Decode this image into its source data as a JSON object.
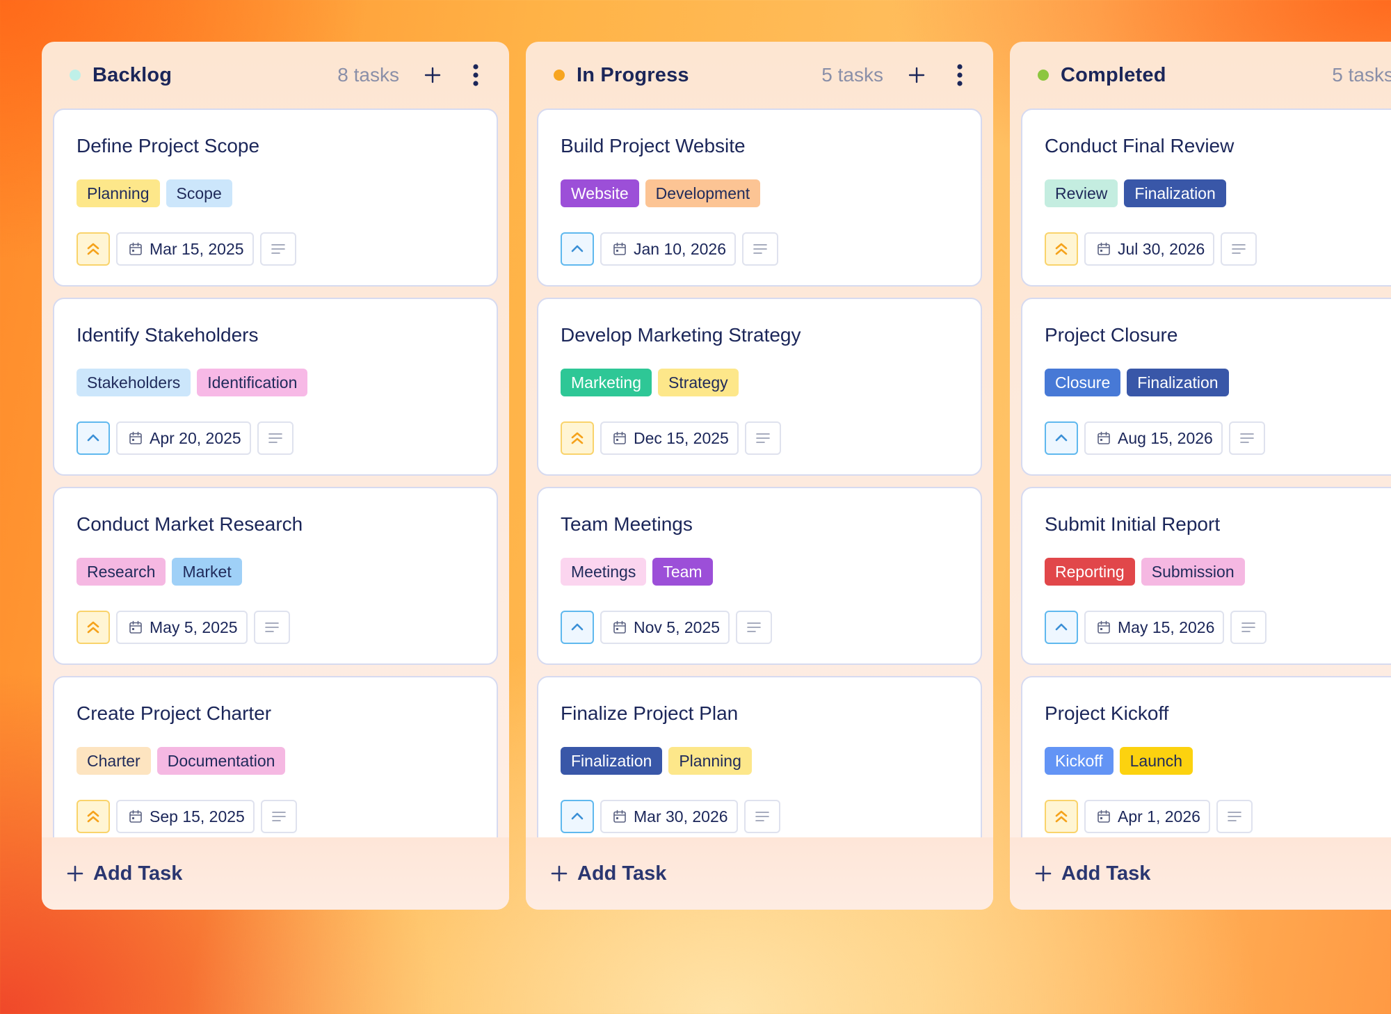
{
  "columns": [
    {
      "title": "Backlog",
      "count_label": "8 tasks",
      "dot_color": "#bff0e8",
      "show_actions": true,
      "add_task_label": "Add Task",
      "cards": [
        {
          "title": "Define Project Scope",
          "tags": [
            {
              "label": "Planning",
              "bg": "#fde78a",
              "fg": "#1f2a5a"
            },
            {
              "label": "Scope",
              "bg": "#cce6fb",
              "fg": "#1f2a5a"
            }
          ],
          "priority": "high",
          "date": "Mar 15, 2025"
        },
        {
          "title": "Identify Stakeholders",
          "tags": [
            {
              "label": "Stakeholders",
              "bg": "#cce6fb",
              "fg": "#1f2a5a"
            },
            {
              "label": "Identification",
              "bg": "#f7b9e6",
              "fg": "#1f2a5a"
            }
          ],
          "priority": "medium",
          "date": "Apr 20, 2025"
        },
        {
          "title": "Conduct Market Research",
          "tags": [
            {
              "label": "Research",
              "bg": "#f5b8e2",
              "fg": "#1f2a5a"
            },
            {
              "label": "Market",
              "bg": "#9fd0f7",
              "fg": "#1f2a5a"
            }
          ],
          "priority": "high",
          "date": "May 5, 2025"
        },
        {
          "title": "Create Project Charter",
          "tags": [
            {
              "label": "Charter",
              "bg": "#fde4c0",
              "fg": "#1f2a5a"
            },
            {
              "label": "Documentation",
              "bg": "#f5b8e2",
              "fg": "#1f2a5a"
            }
          ],
          "priority": "high",
          "date": "Sep 15, 2025"
        }
      ]
    },
    {
      "title": "In Progress",
      "count_label": "5 tasks",
      "dot_color": "#f7a51f",
      "show_actions": true,
      "add_task_label": "Add Task",
      "cards": [
        {
          "title": "Build Project Website",
          "tags": [
            {
              "label": "Website",
              "bg": "#9c4fd8",
              "fg": "#ffffff"
            },
            {
              "label": "Development",
              "bg": "#fcc494",
              "fg": "#1f2a5a"
            }
          ],
          "priority": "medium",
          "date": "Jan 10, 2026"
        },
        {
          "title": "Develop Marketing Strategy",
          "tags": [
            {
              "label": "Marketing",
              "bg": "#2ec796",
              "fg": "#ffffff"
            },
            {
              "label": "Strategy",
              "bg": "#fde78a",
              "fg": "#1f2a5a"
            }
          ],
          "priority": "high",
          "date": "Dec 15, 2025"
        },
        {
          "title": "Team Meetings",
          "tags": [
            {
              "label": "Meetings",
              "bg": "#fbd5ef",
              "fg": "#1f2a5a"
            },
            {
              "label": "Team",
              "bg": "#9c4fd8",
              "fg": "#ffffff"
            }
          ],
          "priority": "medium",
          "date": "Nov 5, 2025"
        },
        {
          "title": "Finalize Project Plan",
          "tags": [
            {
              "label": "Finalization",
              "bg": "#3957a8",
              "fg": "#ffffff"
            },
            {
              "label": "Planning",
              "bg": "#fde78a",
              "fg": "#1f2a5a"
            }
          ],
          "priority": "medium",
          "date": "Mar 30, 2026"
        }
      ]
    },
    {
      "title": "Completed",
      "count_label": "5 tasks",
      "dot_color": "#8cc63f",
      "show_actions": false,
      "add_task_label": "Add Task",
      "cards": [
        {
          "title": "Conduct Final Review",
          "tags": [
            {
              "label": "Review",
              "bg": "#c4ede0",
              "fg": "#1f2a5a"
            },
            {
              "label": "Finalization",
              "bg": "#3957a8",
              "fg": "#ffffff"
            }
          ],
          "priority": "high",
          "date": "Jul 30, 2026"
        },
        {
          "title": "Project Closure",
          "tags": [
            {
              "label": "Closure",
              "bg": "#4779d6",
              "fg": "#ffffff"
            },
            {
              "label": "Finalization",
              "bg": "#3957a8",
              "fg": "#ffffff"
            }
          ],
          "priority": "medium",
          "date": "Aug 15, 2026"
        },
        {
          "title": "Submit Initial Report",
          "tags": [
            {
              "label": "Reporting",
              "bg": "#e1474a",
              "fg": "#ffffff"
            },
            {
              "label": "Submission",
              "bg": "#f5b8e2",
              "fg": "#1f2a5a"
            }
          ],
          "priority": "medium",
          "date": "May 15, 2026"
        },
        {
          "title": "Project Kickoff",
          "tags": [
            {
              "label": "Kickoff",
              "bg": "#6394f5",
              "fg": "#ffffff"
            },
            {
              "label": "Launch",
              "bg": "#fcd20f",
              "fg": "#1f2a5a"
            }
          ],
          "priority": "high",
          "date": "Apr 1, 2026"
        }
      ]
    }
  ],
  "icons": {
    "add": "plus-icon",
    "more": "more-vertical-icon",
    "calendar": "calendar-icon",
    "notes": "notes-lines-icon",
    "priority_high": "double-chevron-up-icon",
    "priority_medium": "chevron-up-icon"
  },
  "colors": {
    "priority_high_icon": "#f5a21b",
    "priority_medium_icon": "#3a8fd6"
  }
}
